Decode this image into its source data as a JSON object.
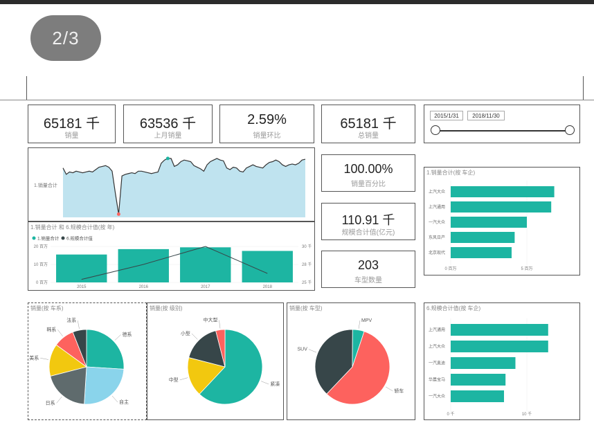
{
  "pager": {
    "label": "2/3"
  },
  "kpis": [
    {
      "value": "65181 千",
      "label": "销量"
    },
    {
      "value": "63536 千",
      "label": "上月销量"
    },
    {
      "value": "2.59%",
      "label": "销量环比"
    },
    {
      "value": "65181 千",
      "label": "总销量"
    },
    {
      "value": "100.00%",
      "label": "销量百分比"
    },
    {
      "value": "110.91 千",
      "label": "规模合计值(亿元)"
    },
    {
      "value": "203",
      "label": "车型数量"
    }
  ],
  "date_slicer": {
    "start": "2015/1/31",
    "end": "2018/11/30",
    "start_position": 0.0,
    "end_position": 1.0
  },
  "colors": {
    "teal": "#1db5a2",
    "dark": "#374649",
    "red": "#fd625e",
    "yellow": "#f2c80f",
    "gray": "#5f6b6d",
    "lightblue": "#8ad4eb",
    "area": "#bfe3ef"
  },
  "chart_data": [
    {
      "type": "area",
      "title": "",
      "series_label": "1.销量合计",
      "values": [
        62,
        54,
        57,
        56,
        58,
        57,
        56,
        57,
        58,
        57,
        60,
        63,
        64,
        65,
        63,
        58,
        30,
        4,
        52,
        54,
        55,
        56,
        55,
        58,
        58,
        57,
        56,
        55,
        56,
        57,
        68,
        72,
        74,
        74,
        64,
        66,
        70,
        72,
        71,
        70,
        65,
        63,
        61,
        58,
        66,
        70,
        72,
        74,
        72,
        71,
        62,
        60,
        63,
        62,
        58,
        57,
        62,
        64,
        66,
        64,
        63,
        62,
        66,
        69,
        70,
        72,
        70,
        66,
        64,
        66,
        67,
        66,
        68,
        72,
        73
      ]
    },
    {
      "type": "bar",
      "title": "1.销量合计 和 6.规模合计值(按 年)",
      "legend": [
        "1.销量合计",
        "6.规模合计值"
      ],
      "categories": [
        "2015",
        "2016",
        "2017",
        "2018"
      ],
      "series": [
        {
          "name": "1.销量合计",
          "values": [
            15.5,
            18.5,
            19.5,
            17.5
          ]
        },
        {
          "name": "6.规模合计值",
          "values": [
            24.5,
            27,
            30,
            25.5
          ]
        }
      ],
      "y_ticks": [
        "0 百万",
        "10 百万",
        "20 百万"
      ],
      "y2_ticks": [
        "25 千",
        "28 千",
        "30 千"
      ],
      "ylim": [
        0,
        20
      ],
      "y2lim": [
        24,
        30
      ]
    },
    {
      "type": "bar",
      "orientation": "horizontal",
      "title": "1.销量合计(按 车企)",
      "categories": [
        "上汽大众",
        "上汽通用",
        "一汽大众",
        "东风日产",
        "北京现代"
      ],
      "values": [
        6.8,
        6.6,
        5.0,
        4.2,
        4.0
      ],
      "x_ticks": [
        "0 百万",
        "5 百万"
      ],
      "xlim": [
        0,
        8
      ]
    },
    {
      "type": "bar",
      "orientation": "horizontal",
      "title": "6.规模合计值(按 车企)",
      "categories": [
        "上汽通用",
        "上汽大众",
        "一汽奥迪",
        "华晨宝马",
        "一汽大众"
      ],
      "values": [
        12.8,
        12.8,
        8.5,
        7.2,
        7.0
      ],
      "x_ticks": [
        "0 千",
        "10 千"
      ],
      "xlim": [
        0,
        16
      ]
    },
    {
      "type": "pie",
      "title": "销量(按 车系)",
      "labels": [
        "德系",
        "自主",
        "日系",
        "美系",
        "韩系",
        "法系"
      ],
      "values": [
        26,
        25,
        20,
        14,
        9,
        6
      ]
    },
    {
      "type": "pie",
      "title": "销量(按 级别)",
      "labels": [
        "紧凑",
        "中型",
        "小型",
        "中大型"
      ],
      "values": [
        62,
        17,
        17,
        4
      ]
    },
    {
      "type": "pie",
      "title": "销量(按 车型)",
      "labels": [
        "轿车",
        "SUV",
        "MPV"
      ],
      "values": [
        57,
        38,
        5
      ]
    }
  ]
}
